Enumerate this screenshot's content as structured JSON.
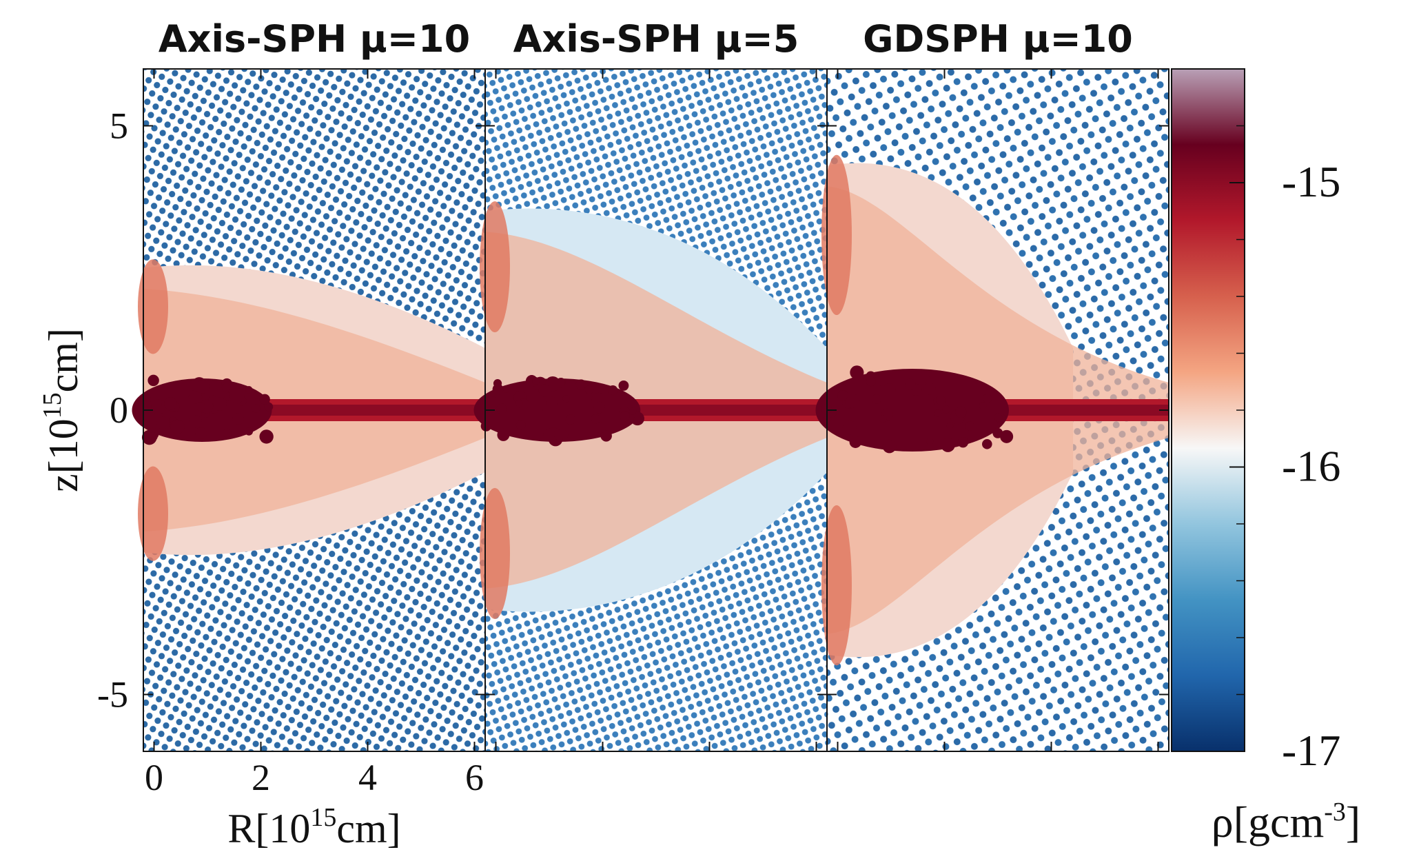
{
  "chart_data": {
    "type": "heatmap",
    "panels": [
      {
        "title": "Axis-SPH μ=10",
        "jet_core_extent": 2.0,
        "cocoon_z": 2.5,
        "hot_spot_z": 2.6
      },
      {
        "title": "Axis-SPH μ=5",
        "jet_core_extent": 2.5,
        "cocoon_z": 3.5,
        "hot_spot_z": 3.6
      },
      {
        "title": "GDSPH  μ=10",
        "jet_core_extent": 3.0,
        "cocoon_z": 4.3,
        "hot_spot_z": 4.4
      }
    ],
    "xlabel": {
      "main": "R[10",
      "sup": "15",
      "rest": "cm]"
    },
    "ylabel": {
      "main": "z[10",
      "sup": "15",
      "rest": "cm]"
    },
    "xlim": [
      -0.2,
      6.2
    ],
    "ylim": [
      -6.0,
      6.0
    ],
    "x_ticks": [
      "0",
      "2",
      "4",
      "6"
    ],
    "x_tick_values": [
      0,
      2,
      4,
      6
    ],
    "y_ticks": [
      "5",
      "0",
      "-5"
    ],
    "y_tick_values": [
      5,
      0,
      -5
    ],
    "colorbar": {
      "label": {
        "main": "ρ[gcm",
        "sup": "-3",
        "rest": "]"
      },
      "range": [
        -17.0,
        -14.6
      ],
      "ticks": [
        "-15",
        "-16",
        "-17"
      ],
      "tick_values": [
        -15,
        -16,
        -17
      ],
      "colors": [
        "#08306b",
        "#2166ac",
        "#4393c3",
        "#92c5de",
        "#f7f7f7",
        "#f4a582",
        "#d6604d",
        "#b2182b",
        "#67001f",
        "#b9a0b6"
      ]
    }
  }
}
